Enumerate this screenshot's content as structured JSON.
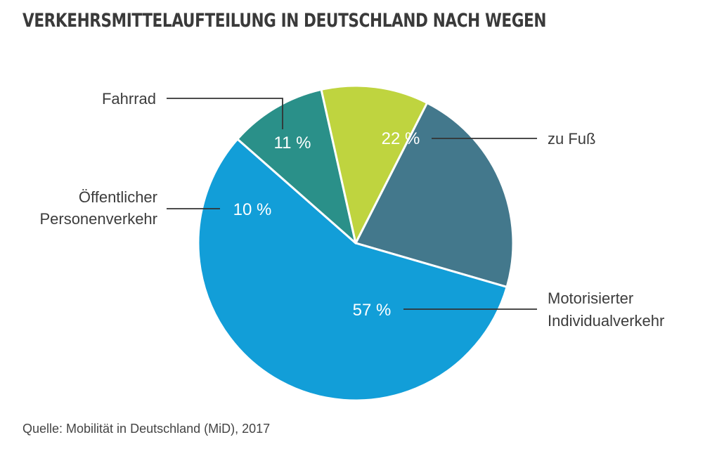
{
  "title": "VERKEHRSMITTELAUFTEILUNG IN DEUTSCHLAND NACH WEGEN",
  "source": "Quelle: Mobilität in Deutschland (MiD), 2017",
  "chart_data": {
    "type": "pie",
    "title": "VERKEHRSMITTELAUFTEILUNG IN DEUTSCHLAND NACH WEGEN",
    "unit": "%",
    "slices": [
      {
        "key": "zu-fuss",
        "label": [
          "zu Fuß"
        ],
        "value": 22,
        "value_label": "22 %",
        "color": "#43788c"
      },
      {
        "key": "motorisierter-individualverkehr",
        "label": [
          "Motorisierter",
          "Individualverkehr"
        ],
        "value": 57,
        "value_label": "57 %",
        "color": "#129ed8"
      },
      {
        "key": "oeffentlicher-personenverkehr",
        "label": [
          "Öffentlicher",
          "Personenverkehr"
        ],
        "value": 10,
        "value_label": "10 %",
        "color": "#2a9089"
      },
      {
        "key": "fahrrad",
        "label": [
          "Fahrrad"
        ],
        "value": 11,
        "value_label": "11 %",
        "color": "#bfd43f"
      }
    ]
  }
}
